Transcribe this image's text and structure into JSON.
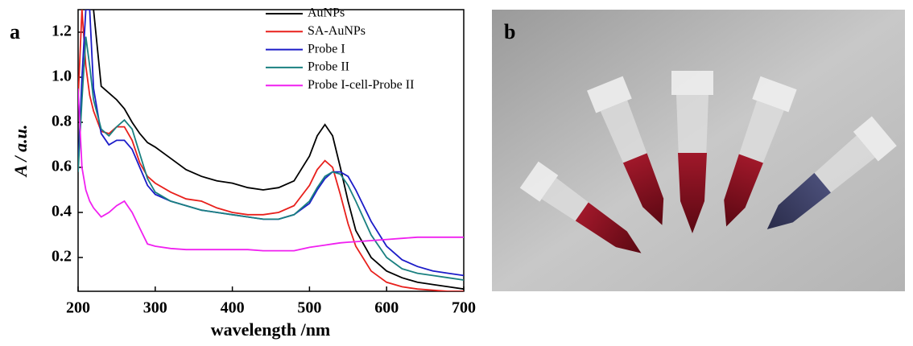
{
  "chart_data": {
    "type": "line",
    "panel_labels": [
      "a",
      "b"
    ],
    "xlabel": "wavelength /nm",
    "ylabel": "A / a.u.",
    "x": [
      200,
      205,
      210,
      215,
      220,
      230,
      240,
      250,
      260,
      270,
      280,
      290,
      300,
      320,
      340,
      360,
      380,
      400,
      420,
      440,
      460,
      480,
      500,
      510,
      520,
      530,
      540,
      550,
      560,
      580,
      600,
      620,
      640,
      660,
      680,
      700
    ],
    "xlim": [
      200,
      700
    ],
    "xticks": [
      200,
      300,
      400,
      500,
      600,
      700
    ],
    "ylim": [
      0.05,
      1.3
    ],
    "yticks": [
      0.2,
      0.4,
      0.6,
      0.8,
      {
        "value": 1,
        "label": "1.0"
      },
      1.2
    ],
    "series": [
      {
        "name": "AuNPs",
        "color": "#000000",
        "values": [
          null,
          null,
          null,
          null,
          1.3,
          0.96,
          0.93,
          0.9,
          0.86,
          0.8,
          0.75,
          0.71,
          0.69,
          0.64,
          0.59,
          0.56,
          0.54,
          0.53,
          0.51,
          0.5,
          0.51,
          0.54,
          0.65,
          0.74,
          0.79,
          0.74,
          0.6,
          0.45,
          0.32,
          0.2,
          0.14,
          0.11,
          0.09,
          0.08,
          0.07,
          0.06
        ]
      },
      {
        "name": "SA-AuNPs",
        "color": "#e8201c",
        "values": [
          0.9,
          1.3,
          1.05,
          0.92,
          0.85,
          0.76,
          0.75,
          0.78,
          0.78,
          0.72,
          0.62,
          0.56,
          0.53,
          0.49,
          0.46,
          0.45,
          0.42,
          0.4,
          0.39,
          0.39,
          0.4,
          0.43,
          0.52,
          0.59,
          0.63,
          0.6,
          0.48,
          0.35,
          0.25,
          0.14,
          0.09,
          0.07,
          0.06,
          0.055,
          0.05,
          0.05
        ]
      },
      {
        "name": "Probe I",
        "color": "#1c1cc8",
        "values": [
          0.6,
          1.0,
          1.3,
          1.3,
          0.95,
          0.75,
          0.7,
          0.72,
          0.72,
          0.68,
          0.6,
          0.52,
          0.48,
          0.45,
          0.43,
          0.41,
          0.4,
          0.39,
          0.38,
          0.37,
          0.37,
          0.39,
          0.44,
          0.5,
          0.55,
          0.58,
          0.58,
          0.56,
          0.5,
          0.36,
          0.25,
          0.19,
          0.16,
          0.14,
          0.13,
          0.12
        ]
      },
      {
        "name": "Probe II",
        "color": "#1a8080",
        "values": [
          0.58,
          0.9,
          1.18,
          1.05,
          0.9,
          0.77,
          0.74,
          0.78,
          0.81,
          0.77,
          0.66,
          0.55,
          0.49,
          0.45,
          0.43,
          0.41,
          0.4,
          0.39,
          0.38,
          0.37,
          0.37,
          0.39,
          0.45,
          0.51,
          0.56,
          0.58,
          0.57,
          0.52,
          0.45,
          0.3,
          0.2,
          0.15,
          0.13,
          0.12,
          0.11,
          0.1
        ]
      },
      {
        "name": "Probe I-cell-Probe II",
        "color": "#f020f0",
        "values": [
          0.95,
          0.6,
          0.5,
          0.45,
          0.42,
          0.38,
          0.4,
          0.43,
          0.45,
          0.4,
          0.33,
          0.26,
          0.25,
          0.24,
          0.235,
          0.235,
          0.235,
          0.235,
          0.235,
          0.23,
          0.23,
          0.23,
          0.245,
          0.25,
          0.255,
          0.26,
          0.265,
          0.268,
          0.27,
          0.275,
          0.28,
          0.285,
          0.29,
          0.29,
          0.29,
          0.29
        ]
      }
    ]
  }
}
